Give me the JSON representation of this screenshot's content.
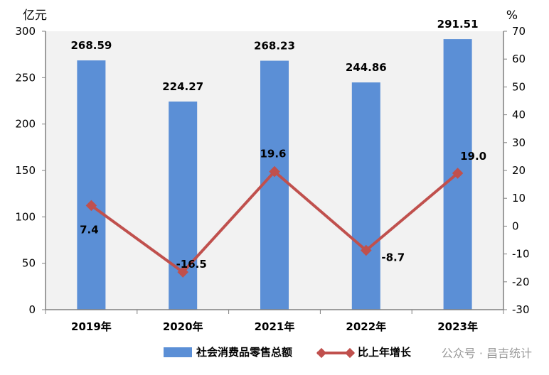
{
  "chart_data": {
    "type": "bar",
    "categories": [
      "2019年",
      "2020年",
      "2021年",
      "2022年",
      "2023年"
    ],
    "series": [
      {
        "name": "社会消费品零售总额",
        "type": "bar",
        "axis": "left",
        "values": [
          268.59,
          224.27,
          268.23,
          244.86,
          291.51
        ],
        "labels": [
          "268.59",
          "224.27",
          "268.23",
          "244.86",
          "291.51"
        ],
        "color": "#5B8FD6"
      },
      {
        "name": "比上年增长",
        "type": "line",
        "axis": "right",
        "values": [
          7.4,
          -16.5,
          19.6,
          -8.7,
          19.0
        ],
        "labels": [
          "7.4",
          "-16.5",
          "19.6",
          "-8.7",
          "19.0"
        ],
        "color": "#C0504D"
      }
    ],
    "y_left": {
      "unit": "亿元",
      "min": 0,
      "max": 300,
      "ticks": [
        "0",
        "50",
        "100",
        "150",
        "200",
        "250",
        "300"
      ]
    },
    "y_right": {
      "unit": "%",
      "min": -30,
      "max": 70,
      "ticks": [
        "-30",
        "-20",
        "-10",
        "0",
        "10",
        "20",
        "30",
        "40",
        "50",
        "60",
        "70"
      ]
    },
    "grid": false,
    "plot_background": "#F2F2F2",
    "legend_position": "bottom"
  },
  "watermark": {
    "text": "公众号 · 昌吉统计"
  }
}
